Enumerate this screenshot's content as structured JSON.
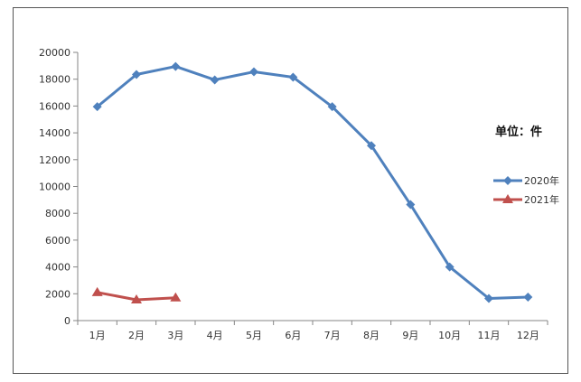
{
  "chart_data": {
    "type": "line",
    "categories": [
      "1月",
      "2月",
      "3月",
      "4月",
      "5月",
      "6月",
      "7月",
      "8月",
      "9月",
      "10月",
      "11月",
      "12月"
    ],
    "series": [
      {
        "name": "2020年",
        "color": "#4f81bd",
        "marker": "diamond",
        "values": [
          15950,
          18350,
          18950,
          17950,
          18550,
          18150,
          15950,
          13050,
          8650,
          4000,
          1650,
          1750
        ]
      },
      {
        "name": "2021年",
        "color": "#c0504d",
        "marker": "triangle",
        "values": [
          2100,
          1550,
          1700,
          null,
          null,
          null,
          null,
          null,
          null,
          null,
          null,
          null
        ]
      }
    ],
    "ylim": [
      0,
      20000
    ],
    "yticks": [
      0,
      2000,
      4000,
      6000,
      8000,
      10000,
      12000,
      14000,
      16000,
      18000,
      20000
    ],
    "unit_label": "单位：件",
    "grid": false,
    "legend_position": "right"
  }
}
